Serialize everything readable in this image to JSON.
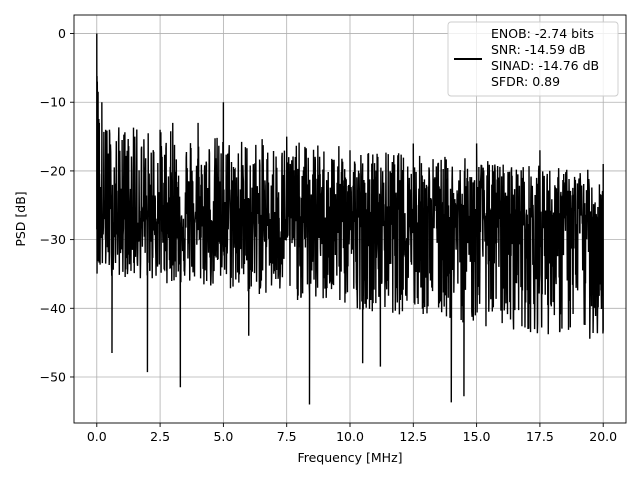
{
  "chart_data": {
    "type": "line",
    "xlabel": "Frequency [MHz]",
    "ylabel": "PSD [dB]",
    "xlim": [
      -0.9,
      20.9
    ],
    "ylim": [
      -56.7,
      2.7
    ],
    "xticks": [
      0.0,
      2.5,
      5.0,
      7.5,
      10.0,
      12.5,
      15.0,
      17.5,
      20.0
    ],
    "xtick_labels": [
      "0.0",
      "2.5",
      "5.0",
      "7.5",
      "10.0",
      "12.5",
      "15.0",
      "17.5",
      "20.0"
    ],
    "yticks": [
      0,
      -10,
      -20,
      -30,
      -40,
      -50
    ],
    "ytick_labels": [
      "0",
      "−10",
      "−20",
      "−30",
      "−40",
      "−50"
    ],
    "grid": true,
    "legend_position": "upper-right",
    "legend_entries": [
      "ENOB: -2.74 bits",
      "SNR: -14.59 dB",
      "SINAD: -14.76 dB",
      "SFDR: 0.89"
    ],
    "series": [
      {
        "color": "#000000",
        "description_points": {
          "x": [
            0.0,
            0.02,
            0.05,
            0.1,
            0.2,
            0.35,
            0.5,
            0.6,
            1.0,
            1.5,
            2.0,
            2.5,
            3.0,
            3.3,
            4.0,
            5.0,
            5.0,
            6.0,
            7.5,
            8.4,
            10.0,
            10.5,
            11.2,
            12.5,
            14.0,
            14.5,
            15.0,
            17.5,
            20.0
          ],
          "y": [
            0.0,
            -7.0,
            -8.5,
            -13.0,
            -10.0,
            -14.0,
            -14.0,
            -46.5,
            -15.5,
            -15.0,
            -49.3,
            -14.0,
            -13.0,
            -51.5,
            -13.0,
            -10.0,
            -28.0,
            -44.0,
            -15.0,
            -54.0,
            -17.0,
            -48.0,
            -48.5,
            -16.0,
            -53.7,
            -52.8,
            -16.0,
            -17.0,
            -19.0
          ]
        },
        "noise_floor_center_db": -27,
        "upper_envelope_db": [
          -13,
          -20
        ],
        "lower_envelope_db": [
          -35,
          -45
        ]
      }
    ]
  }
}
